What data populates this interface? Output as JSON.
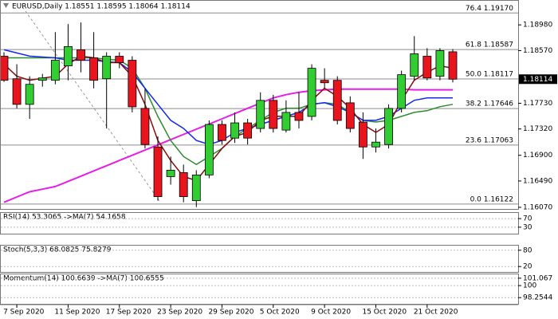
{
  "chart_data": {
    "type": "candlestick",
    "title": "EURUSD,Daily  1.18551 1.18595 1.18064 1.18114",
    "categories": [
      null,
      "7 Sep 2020",
      null,
      null,
      null,
      "11 Sep 2020",
      null,
      null,
      null,
      "17 Sep 2020",
      null,
      null,
      null,
      "23 Sep 2020",
      null,
      null,
      null,
      "29 Sep 2020",
      null,
      null,
      null,
      "5 Oct 2020",
      null,
      null,
      null,
      "9 Oct 2020",
      null,
      null,
      null,
      "15 Oct 2020",
      null,
      null,
      null,
      "21 Oct 2020",
      null,
      null
    ],
    "open": [
      1.1848,
      1.18121,
      1.17712,
      1.18096,
      1.18096,
      1.18326,
      1.18583,
      1.18455,
      1.18121,
      1.1848,
      1.18416,
      1.17648,
      1.17033,
      1.1656,
      1.16624,
      1.16176,
      1.16586,
      1.17392,
      1.17174,
      1.17417,
      1.17328,
      1.17776,
      1.17302,
      1.17584,
      1.1752,
      1.18096,
      1.18096,
      1.17737,
      1.1743,
      1.17033,
      1.17072,
      1.17648,
      1.1816,
      1.1848,
      1.1816,
      1.18551
    ],
    "high": [
      1.18544,
      1.18352,
      1.1816,
      1.18199,
      1.18865,
      1.18993,
      1.19018,
      1.18865,
      1.18544,
      1.18544,
      1.1848,
      1.17968,
      1.172,
      1.1688,
      1.16752,
      1.16662,
      1.17456,
      1.17456,
      1.17584,
      1.17481,
      1.17904,
      1.17865,
      1.17776,
      1.17904,
      1.18352,
      1.18288,
      1.1816,
      1.1784,
      1.17584,
      1.17328,
      1.17712,
      1.1825,
      1.18801,
      1.18608,
      1.18608,
      1.18595
    ],
    "low": [
      1.1807,
      1.17648,
      1.17481,
      1.17994,
      1.18032,
      1.18096,
      1.18224,
      1.17968,
      1.17328,
      1.18288,
      1.17584,
      1.17008,
      1.16176,
      1.16432,
      1.1615,
      1.16074,
      1.16534,
      1.17072,
      1.17097,
      1.17072,
      1.17264,
      1.17264,
      1.17264,
      1.17328,
      1.17456,
      1.17968,
      1.17392,
      1.17264,
      1.16842,
      1.16944,
      1.17008,
      1.17584,
      1.18096,
      1.18096,
      1.18096,
      1.18064
    ],
    "close": [
      1.18096,
      1.17712,
      1.18032,
      1.18134,
      1.18416,
      1.18634,
      1.18416,
      1.18096,
      1.1848,
      1.18378,
      1.17673,
      1.17072,
      1.1624,
      1.16662,
      1.1624,
      1.16586,
      1.17392,
      1.17136,
      1.17417,
      1.17174,
      1.17776,
      1.17328,
      1.17584,
      1.17456,
      1.18288,
      1.18057,
      1.17456,
      1.17328,
      1.17033,
      1.1711,
      1.17648,
      1.18186,
      1.18519,
      1.18134,
      1.1857,
      1.18114
    ],
    "up_color": "#32cd32",
    "down_color": "#e8141e",
    "ylim": [
      1.16044,
      1.19377
    ],
    "yticks": [
      {
        "value": 1.1898,
        "label": "1.18980"
      },
      {
        "value": 1.1857,
        "label": "1.18570"
      },
      {
        "value": 1.1773,
        "label": "1.17730"
      },
      {
        "value": 1.1732,
        "label": "1.17320"
      },
      {
        "value": 1.169,
        "label": "1.16900"
      },
      {
        "value": 1.1649,
        "label": "1.16490"
      },
      {
        "value": 1.1607,
        "label": "1.16070"
      }
    ],
    "last_price": 1.18114,
    "fib_levels": [
      {
        "value": 1.1917,
        "label": "76.4 1.19170"
      },
      {
        "value": 1.18587,
        "label": "61.8 1.18587"
      },
      {
        "value": 1.18117,
        "label": "50.0 1.18117"
      },
      {
        "value": 1.17646,
        "label": "38.2 1.17646"
      },
      {
        "value": 1.17063,
        "label": "23.6 1.17063"
      },
      {
        "value": 1.16122,
        "label": "0.0 1.16122"
      }
    ],
    "overlays": [
      {
        "color": "#e61ee6",
        "width": 2,
        "values": [
          1.1615,
          1.16235,
          1.16318,
          1.1636,
          1.16401,
          1.16484,
          1.16567,
          1.16651,
          1.16734,
          1.16817,
          1.169,
          1.16983,
          1.17066,
          1.1715,
          1.17233,
          1.17316,
          1.17399,
          1.17482,
          1.17566,
          1.17649,
          1.17732,
          1.17815,
          1.17867,
          1.17905,
          1.17931,
          1.17944,
          1.17956,
          1.17956,
          1.17956,
          1.17956,
          1.17956,
          1.17956,
          1.17944,
          1.17944,
          1.17944,
          1.17944
        ]
      },
      {
        "color": "#2e8b2e",
        "width": 1.5,
        "values": [
          1.18455,
          1.18455,
          1.18455,
          1.18455,
          1.18455,
          1.18455,
          1.18455,
          1.18455,
          1.1843,
          1.18417,
          1.18289,
          1.17969,
          1.17521,
          1.17137,
          1.16881,
          1.16753,
          1.16881,
          1.17009,
          1.17201,
          1.17329,
          1.17457,
          1.17585,
          1.17649,
          1.17649,
          1.17713,
          1.17739,
          1.17713,
          1.17585,
          1.17457,
          1.17431,
          1.17457,
          1.17521,
          1.17585,
          1.17611,
          1.17675,
          1.17713
        ]
      },
      {
        "color": "#1428f0",
        "width": 1.5,
        "values": [
          1.18583,
          1.18532,
          1.18481,
          1.18468,
          1.18455,
          1.18417,
          1.18417,
          1.18417,
          1.18391,
          1.18379,
          1.18225,
          1.17969,
          1.17713,
          1.17457,
          1.17329,
          1.17137,
          1.17073,
          1.17137,
          1.17265,
          1.17329,
          1.17393,
          1.17457,
          1.17521,
          1.17585,
          1.17713,
          1.17739,
          1.17675,
          1.17585,
          1.17457,
          1.17457,
          1.17521,
          1.17649,
          1.17777,
          1.17815,
          1.17815,
          1.17815
        ]
      },
      {
        "color": "#8b0a0a",
        "width": 1.5,
        "values": [
          1.18353,
          1.18161,
          1.18097,
          1.18129,
          1.18161,
          1.18353,
          1.18481,
          1.18455,
          1.18379,
          1.18379,
          1.18161,
          1.17713,
          1.17137,
          1.16817,
          1.16561,
          1.16497,
          1.16753,
          1.17009,
          1.17201,
          1.17265,
          1.17457,
          1.17521,
          1.17521,
          1.17521,
          1.17777,
          1.17969,
          1.17841,
          1.17649,
          1.17393,
          1.17265,
          1.17393,
          1.17777,
          1.18097,
          1.18225,
          1.18327,
          1.18289
        ]
      }
    ],
    "indicators": [
      {
        "label": "RSI(14) 53.3065 ->MA(7) 54.1658",
        "ylim": [
          0,
          100
        ],
        "yticks": [
          70,
          30
        ]
      },
      {
        "label": "Stoch(5,3,3) 68.0825 75.8279",
        "ylim": [
          0,
          100
        ],
        "yticks": [
          80,
          20
        ]
      },
      {
        "label": "Momentum(14) 100.6639 ->MA(7) 100.6555",
        "ylim": [
          97.354,
          101.742
        ],
        "yticks": [
          101.067,
          100,
          98.2544
        ]
      }
    ]
  }
}
